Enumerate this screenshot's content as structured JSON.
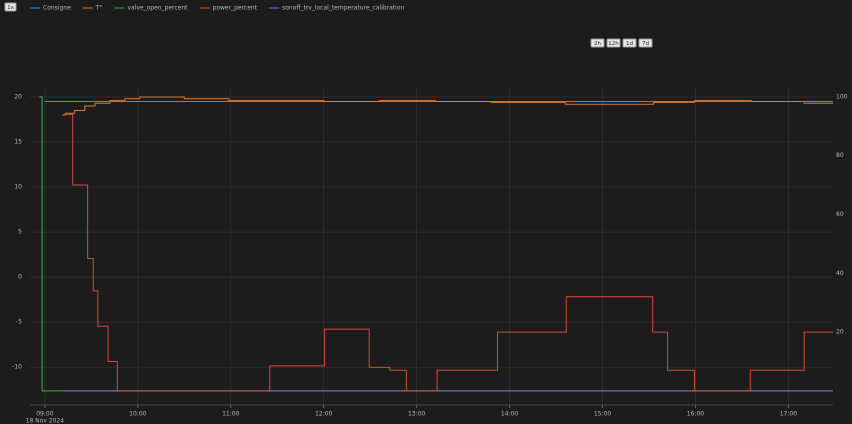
{
  "chart_data": {
    "type": "step",
    "toggle_button": "1x",
    "range_buttons": [
      "2h",
      "12h",
      "1d",
      "7d"
    ],
    "x_date_label": "18 Nov 2024",
    "xlim": [
      8.84,
      17.48
    ],
    "xticks": [
      {
        "value": 9,
        "label": "09:00"
      },
      {
        "value": 10,
        "label": "10:00"
      },
      {
        "value": 11,
        "label": "11:00"
      },
      {
        "value": 12,
        "label": "12:00"
      },
      {
        "value": 13,
        "label": "13:00"
      },
      {
        "value": 14,
        "label": "14:00"
      },
      {
        "value": 15,
        "label": "15:00"
      },
      {
        "value": 16,
        "label": "16:00"
      },
      {
        "value": 17,
        "label": "17:00"
      }
    ],
    "ylim": [
      -14.2,
      21
    ],
    "yticks": [
      -10,
      -5,
      0,
      5,
      10,
      15,
      20
    ],
    "y2lim": [
      -4.8,
      103
    ],
    "y2ticks": [
      20,
      40,
      60,
      80,
      100
    ],
    "grid": true,
    "series": [
      {
        "name": "Consigne",
        "color": "#4a8fd0",
        "axis": "y",
        "x": [
          9.0,
          17.48
        ],
        "values": [
          19.5,
          19.5
        ]
      },
      {
        "name": "T°",
        "color": "#e07a2e",
        "axis": "y",
        "x": [
          9.19,
          9.22,
          9.32,
          9.43,
          9.54,
          9.7,
          9.86,
          10.02,
          10.5,
          10.98,
          12.0,
          12.6,
          13.2,
          13.8,
          14.6,
          15.55,
          15.99,
          16.6,
          17.17,
          17.48
        ],
        "values": [
          18,
          18.2,
          18.5,
          19,
          19.3,
          19.6,
          19.8,
          20,
          19.8,
          19.6,
          19.5,
          19.6,
          19.5,
          19.4,
          19.2,
          19.4,
          19.6,
          19.5,
          19.3,
          19.3
        ]
      },
      {
        "name": "valve_open_percent",
        "color": "#3fae49",
        "axis": "y2",
        "x": [
          8.94,
          8.97,
          17.48
        ],
        "values": [
          100,
          0,
          0
        ]
      },
      {
        "name": "power_percent",
        "color": "#d84a3a",
        "axis": "y2",
        "x": [
          9.19,
          9.3,
          9.46,
          9.52,
          9.57,
          9.68,
          9.78,
          11.42,
          12.01,
          12.49,
          12.71,
          12.89,
          13.22,
          13.87,
          14.61,
          15.54,
          15.7,
          15.99,
          16.59,
          17.17,
          17.48
        ],
        "values": [
          94,
          70,
          45,
          34,
          22,
          10,
          0,
          8.5,
          21,
          8,
          7,
          0,
          7,
          20,
          32,
          20,
          7,
          0,
          7,
          20,
          20
        ]
      },
      {
        "name": "sonoff_trv_local_temperature_calibration",
        "color": "#8e5bd6",
        "axis": "y2",
        "x": [
          9.19,
          17.48
        ],
        "values": [
          0,
          0
        ]
      }
    ]
  }
}
